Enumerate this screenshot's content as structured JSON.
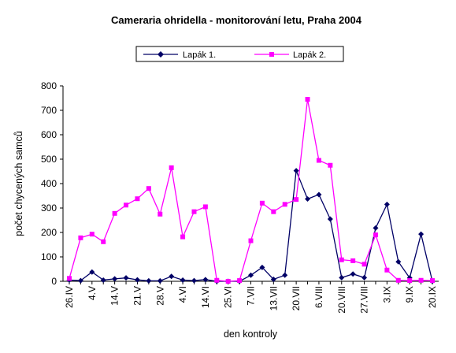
{
  "chart_data": {
    "type": "line",
    "title": "Cameraria ohridella - monitorování letu, Praha 2004",
    "xlabel": "den kontroly",
    "ylabel": "počet chycených samců",
    "ylim": [
      0,
      800
    ],
    "yticks": [
      0,
      100,
      200,
      300,
      400,
      500,
      600,
      700,
      800
    ],
    "grid": false,
    "legend_position": "top",
    "categories": [
      "26.IV",
      "",
      "4.V",
      "",
      "14.V",
      "",
      "21.V",
      "",
      "28.V",
      "",
      "4.VI",
      "",
      "14.VI",
      "",
      "25.VI",
      "",
      "7.VII",
      "",
      "13.VII",
      "",
      "20.VII",
      "",
      "6.VIII",
      "",
      "20.VIII",
      "",
      "27.VIII",
      "",
      "3.IX",
      "",
      "9.IX",
      "",
      "20.IX"
    ],
    "series": [
      {
        "name": "Lapák 1.",
        "color": "#000066",
        "marker": "diamond",
        "values": [
          5,
          3,
          38,
          5,
          10,
          14,
          6,
          2,
          2,
          20,
          5,
          3,
          7,
          0,
          0,
          0,
          25,
          57,
          8,
          25,
          453,
          337,
          355,
          255,
          15,
          30,
          15,
          218,
          315,
          80,
          14,
          193,
          0
        ]
      },
      {
        "name": "Lapák 2.",
        "color": "#ff00ff",
        "marker": "square",
        "values": [
          12,
          178,
          193,
          162,
          278,
          312,
          338,
          380,
          275,
          465,
          182,
          285,
          305,
          4,
          0,
          3,
          166,
          320,
          285,
          315,
          335,
          745,
          495,
          475,
          88,
          84,
          70,
          190,
          46,
          4,
          3,
          4,
          3
        ]
      }
    ]
  }
}
